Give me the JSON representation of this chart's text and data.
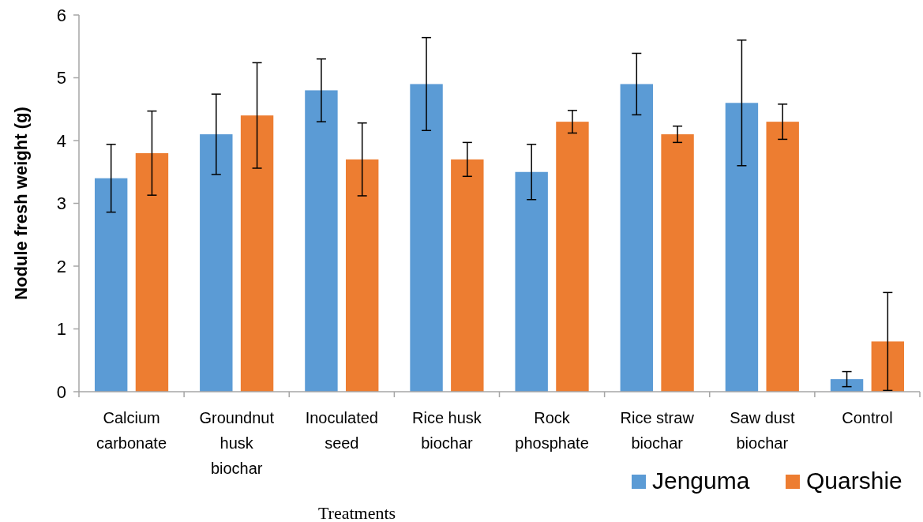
{
  "chart_data": {
    "type": "bar",
    "xlabel": "Treatments",
    "ylabel": "Nodule fresh weight (g)",
    "categories": [
      "Calcium carbonate",
      "Groundnut husk biochar",
      "Inoculated seed",
      "Rice husk biochar",
      "Rock phosphate",
      "Rice straw biochar",
      "Saw dust biochar",
      "Control"
    ],
    "series": [
      {
        "name": "Jenguma",
        "color": "#5b9bd5",
        "values": [
          3.4,
          4.1,
          4.8,
          4.9,
          3.5,
          4.9,
          4.6,
          0.2
        ],
        "errors": [
          0.54,
          0.64,
          0.5,
          0.74,
          0.44,
          0.49,
          1.0,
          0.12
        ]
      },
      {
        "name": "Quarshie",
        "color": "#ed7d31",
        "values": [
          3.8,
          4.4,
          3.7,
          3.7,
          4.3,
          4.1,
          4.3,
          0.8
        ],
        "errors": [
          0.67,
          0.84,
          0.58,
          0.27,
          0.18,
          0.13,
          0.28,
          0.78
        ]
      }
    ],
    "ylim": [
      0,
      6
    ],
    "yticks": [
      0,
      1,
      2,
      3,
      4,
      5,
      6
    ],
    "grid": false,
    "legend": "bottom right"
  }
}
